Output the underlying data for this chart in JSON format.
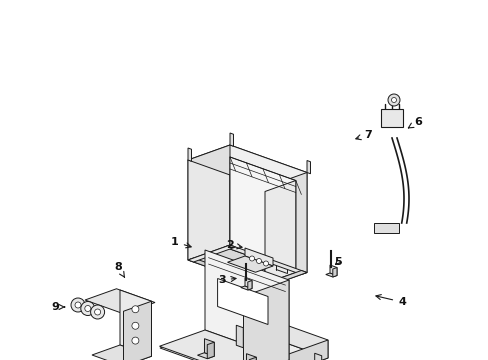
{
  "bg_color": "#ffffff",
  "line_color": "#1a1a1a",
  "line_width": 0.7,
  "label_fontsize": 8.0,
  "figsize": [
    4.89,
    3.6
  ],
  "dpi": 100
}
